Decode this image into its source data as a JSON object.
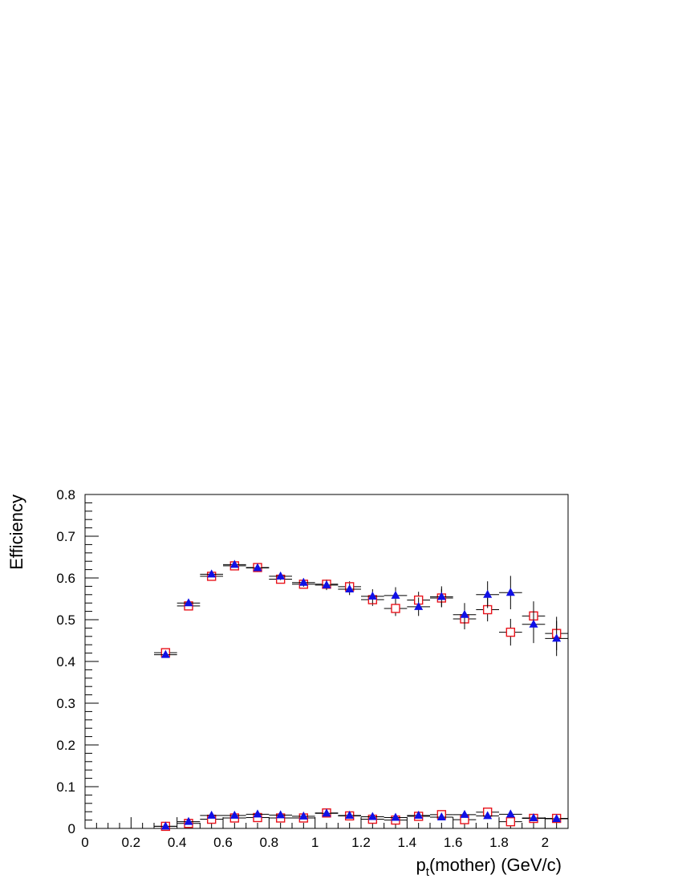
{
  "chart_data": {
    "type": "scatter",
    "title": "",
    "xlabel": {
      "main": "p",
      "sub": "t",
      "rest": "(mother) (GeV/c)"
    },
    "ylabel": "Efficiency",
    "xlim": [
      0,
      2.1
    ],
    "ylim": [
      0,
      0.8
    ],
    "x_ticks": [
      {
        "v": 0,
        "label": "0"
      },
      {
        "v": 0.2,
        "label": "0.2"
      },
      {
        "v": 0.4,
        "label": "0.4"
      },
      {
        "v": 0.6,
        "label": "0.6"
      },
      {
        "v": 0.8,
        "label": "0.8"
      },
      {
        "v": 1.0,
        "label": "1"
      },
      {
        "v": 1.2,
        "label": "1.2"
      },
      {
        "v": 1.4,
        "label": "1.4"
      },
      {
        "v": 1.6,
        "label": "1.6"
      },
      {
        "v": 1.8,
        "label": "1.8"
      },
      {
        "v": 2.0,
        "label": "2"
      }
    ],
    "y_ticks": [
      {
        "v": 0,
        "label": "0"
      },
      {
        "v": 0.1,
        "label": "0.1"
      },
      {
        "v": 0.2,
        "label": "0.2"
      },
      {
        "v": 0.3,
        "label": "0.3"
      },
      {
        "v": 0.4,
        "label": "0.4"
      },
      {
        "v": 0.5,
        "label": "0.5"
      },
      {
        "v": 0.6,
        "label": "0.6"
      },
      {
        "v": 0.7,
        "label": "0.7"
      },
      {
        "v": 0.8,
        "label": "0.8"
      }
    ],
    "grid": false,
    "legend": false,
    "bin_half_width": 0.05,
    "series": [
      {
        "marker": "open-square",
        "color": "#e8141c",
        "points": [
          {
            "x": 0.35,
            "y": 0.421,
            "err": 0.006
          },
          {
            "x": 0.45,
            "y": 0.533,
            "err": 0.007
          },
          {
            "x": 0.55,
            "y": 0.604,
            "err": 0.007
          },
          {
            "x": 0.65,
            "y": 0.629,
            "err": 0.007
          },
          {
            "x": 0.75,
            "y": 0.625,
            "err": 0.008
          },
          {
            "x": 0.85,
            "y": 0.597,
            "err": 0.009
          },
          {
            "x": 0.95,
            "y": 0.585,
            "err": 0.01
          },
          {
            "x": 1.05,
            "y": 0.585,
            "err": 0.011
          },
          {
            "x": 1.15,
            "y": 0.579,
            "err": 0.013
          },
          {
            "x": 1.25,
            "y": 0.548,
            "err": 0.015
          },
          {
            "x": 1.35,
            "y": 0.527,
            "err": 0.018
          },
          {
            "x": 1.45,
            "y": 0.547,
            "err": 0.02
          },
          {
            "x": 1.55,
            "y": 0.552,
            "err": 0.022
          },
          {
            "x": 1.65,
            "y": 0.502,
            "err": 0.025
          },
          {
            "x": 1.75,
            "y": 0.524,
            "err": 0.028
          },
          {
            "x": 1.85,
            "y": 0.47,
            "err": 0.032
          },
          {
            "x": 1.95,
            "y": 0.509,
            "err": 0.035
          },
          {
            "x": 2.05,
            "y": 0.467,
            "err": 0.04
          }
        ]
      },
      {
        "marker": "filled-triangle",
        "color": "#1010e6",
        "points": [
          {
            "x": 0.35,
            "y": 0.416,
            "err": 0.006
          },
          {
            "x": 0.45,
            "y": 0.54,
            "err": 0.007
          },
          {
            "x": 0.55,
            "y": 0.609,
            "err": 0.007
          },
          {
            "x": 0.65,
            "y": 0.632,
            "err": 0.007
          },
          {
            "x": 0.75,
            "y": 0.624,
            "err": 0.008
          },
          {
            "x": 0.85,
            "y": 0.604,
            "err": 0.009
          },
          {
            "x": 0.95,
            "y": 0.589,
            "err": 0.01
          },
          {
            "x": 1.05,
            "y": 0.583,
            "err": 0.012
          },
          {
            "x": 1.15,
            "y": 0.573,
            "err": 0.014
          },
          {
            "x": 1.25,
            "y": 0.556,
            "err": 0.017
          },
          {
            "x": 1.35,
            "y": 0.558,
            "err": 0.02
          },
          {
            "x": 1.45,
            "y": 0.531,
            "err": 0.022
          },
          {
            "x": 1.55,
            "y": 0.555,
            "err": 0.025
          },
          {
            "x": 1.65,
            "y": 0.512,
            "err": 0.028
          },
          {
            "x": 1.75,
            "y": 0.56,
            "err": 0.032
          },
          {
            "x": 1.85,
            "y": 0.565,
            "err": 0.04
          },
          {
            "x": 1.95,
            "y": 0.489,
            "err": 0.045
          },
          {
            "x": 2.05,
            "y": 0.455,
            "err": 0.042
          }
        ]
      },
      {
        "marker": "open-square",
        "color": "#e8141c",
        "points": [
          {
            "x": 0.35,
            "y": 0.005,
            "err": 0.002
          },
          {
            "x": 0.45,
            "y": 0.012,
            "err": 0.003
          },
          {
            "x": 0.55,
            "y": 0.022,
            "err": 0.003
          },
          {
            "x": 0.65,
            "y": 0.025,
            "err": 0.003
          },
          {
            "x": 0.75,
            "y": 0.026,
            "err": 0.003
          },
          {
            "x": 0.85,
            "y": 0.025,
            "err": 0.003
          },
          {
            "x": 0.95,
            "y": 0.025,
            "err": 0.003
          },
          {
            "x": 1.05,
            "y": 0.037,
            "err": 0.004
          },
          {
            "x": 1.15,
            "y": 0.03,
            "err": 0.004
          },
          {
            "x": 1.25,
            "y": 0.022,
            "err": 0.004
          },
          {
            "x": 1.35,
            "y": 0.02,
            "err": 0.004
          },
          {
            "x": 1.45,
            "y": 0.029,
            "err": 0.005
          },
          {
            "x": 1.55,
            "y": 0.033,
            "err": 0.006
          },
          {
            "x": 1.65,
            "y": 0.021,
            "err": 0.006
          },
          {
            "x": 1.75,
            "y": 0.039,
            "err": 0.007
          },
          {
            "x": 1.85,
            "y": 0.016,
            "err": 0.007
          },
          {
            "x": 1.95,
            "y": 0.024,
            "err": 0.008
          },
          {
            "x": 2.05,
            "y": 0.024,
            "err": 0.008
          }
        ]
      },
      {
        "marker": "filled-triangle",
        "color": "#1010e6",
        "points": [
          {
            "x": 0.35,
            "y": 0.005,
            "err": 0.002
          },
          {
            "x": 0.45,
            "y": 0.016,
            "err": 0.003
          },
          {
            "x": 0.55,
            "y": 0.031,
            "err": 0.003
          },
          {
            "x": 0.65,
            "y": 0.031,
            "err": 0.003
          },
          {
            "x": 0.75,
            "y": 0.034,
            "err": 0.003
          },
          {
            "x": 0.85,
            "y": 0.032,
            "err": 0.003
          },
          {
            "x": 0.95,
            "y": 0.029,
            "err": 0.003
          },
          {
            "x": 1.05,
            "y": 0.036,
            "err": 0.004
          },
          {
            "x": 1.15,
            "y": 0.031,
            "err": 0.004
          },
          {
            "x": 1.25,
            "y": 0.028,
            "err": 0.004
          },
          {
            "x": 1.35,
            "y": 0.026,
            "err": 0.004
          },
          {
            "x": 1.45,
            "y": 0.031,
            "err": 0.005
          },
          {
            "x": 1.55,
            "y": 0.027,
            "err": 0.006
          },
          {
            "x": 1.65,
            "y": 0.033,
            "err": 0.006
          },
          {
            "x": 1.75,
            "y": 0.03,
            "err": 0.007
          },
          {
            "x": 1.85,
            "y": 0.034,
            "err": 0.007
          },
          {
            "x": 1.95,
            "y": 0.025,
            "err": 0.008
          },
          {
            "x": 2.05,
            "y": 0.023,
            "err": 0.008
          }
        ]
      }
    ]
  }
}
